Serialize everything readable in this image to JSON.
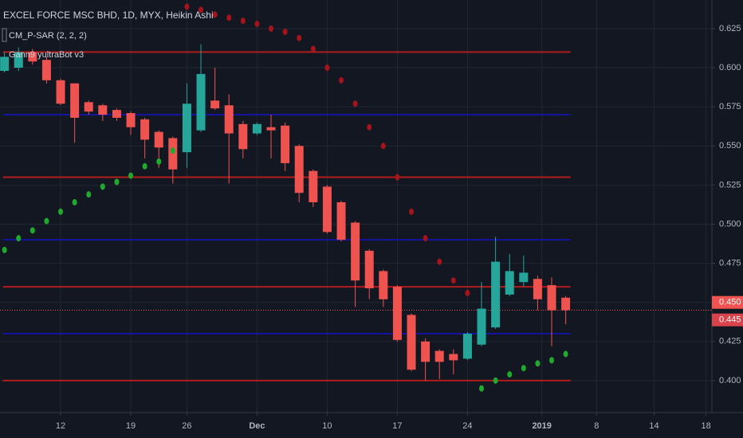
{
  "chart_data": {
    "type": "candlestick",
    "title": "EXCEL FORCE MSC BHD, 1D, MYX, Heikin Ashi",
    "indicators": [
      "CM_P-SAR (2, 2, 2)",
      "Gann9 yultraBot v3"
    ],
    "x": [
      0,
      1,
      2,
      3,
      4,
      5,
      6,
      7,
      8,
      9,
      10,
      11,
      12,
      13,
      14,
      15,
      16,
      17,
      18,
      19,
      20,
      21,
      22,
      23,
      24,
      25,
      26,
      27,
      28,
      29,
      30,
      31,
      32,
      33,
      34,
      35,
      36,
      37,
      38,
      39,
      40
    ],
    "open": [
      0.598,
      0.6,
      0.61,
      0.605,
      0.592,
      0.59,
      0.578,
      0.576,
      0.573,
      0.571,
      0.567,
      0.559,
      0.555,
      0.546,
      0.56,
      0.579,
      0.576,
      0.564,
      0.558,
      0.562,
      0.563,
      0.55,
      0.534,
      0.524,
      0.514,
      0.501,
      0.483,
      0.47,
      0.46,
      0.442,
      0.425,
      0.419,
      0.417,
      0.414,
      0.423,
      0.434,
      0.455,
      0.463,
      0.465,
      0.461,
      0.453
    ],
    "high": [
      0.61,
      0.613,
      0.612,
      0.607,
      0.593,
      0.59,
      0.579,
      0.577,
      0.574,
      0.572,
      0.568,
      0.56,
      0.556,
      0.59,
      0.615,
      0.6,
      0.583,
      0.566,
      0.565,
      0.57,
      0.565,
      0.551,
      0.535,
      0.525,
      0.515,
      0.502,
      0.484,
      0.471,
      0.461,
      0.443,
      0.427,
      0.42,
      0.42,
      0.431,
      0.463,
      0.492,
      0.481,
      0.48,
      0.467,
      0.466,
      0.454
    ],
    "low": [
      0.597,
      0.598,
      0.602,
      0.59,
      0.576,
      0.552,
      0.57,
      0.566,
      0.566,
      0.557,
      0.542,
      0.536,
      0.526,
      0.536,
      0.559,
      0.573,
      0.526,
      0.542,
      0.557,
      0.542,
      0.534,
      0.514,
      0.511,
      0.494,
      0.489,
      0.447,
      0.452,
      0.447,
      0.425,
      0.406,
      0.4,
      0.401,
      0.404,
      0.413,
      0.422,
      0.433,
      0.454,
      0.46,
      0.445,
      0.422,
      0.436
    ],
    "close": [
      0.607,
      0.61,
      0.604,
      0.592,
      0.577,
      0.568,
      0.572,
      0.57,
      0.568,
      0.562,
      0.554,
      0.549,
      0.535,
      0.577,
      0.596,
      0.574,
      0.558,
      0.548,
      0.564,
      0.56,
      0.539,
      0.52,
      0.514,
      0.495,
      0.49,
      0.464,
      0.459,
      0.452,
      0.426,
      0.407,
      0.412,
      0.412,
      0.413,
      0.43,
      0.446,
      0.476,
      0.47,
      0.469,
      0.452,
      0.445,
      0.445
    ],
    "up_color": "#26a69a",
    "down_color": "#ef5350",
    "psar": [
      0.4835,
      0.491,
      0.496,
      0.502,
      0.508,
      0.514,
      0.519,
      0.524,
      0.527,
      0.531,
      0.537,
      0.54,
      0.547,
      0.639,
      0.637,
      0.634,
      0.632,
      0.63,
      0.628,
      0.625,
      0.623,
      0.619,
      0.612,
      0.6,
      0.592,
      0.577,
      0.562,
      0.55,
      0.53,
      0.508,
      0.491,
      0.476,
      0.464,
      0.456,
      0.395,
      0.4,
      0.404,
      0.408,
      0.411,
      0.413,
      0.417
    ],
    "psar_colors": [
      "#1faa2e",
      "#1faa2e",
      "#1faa2e",
      "#1faa2e",
      "#1faa2e",
      "#1faa2e",
      "#1faa2e",
      "#1faa2e",
      "#1faa2e",
      "#1faa2e",
      "#1faa2e",
      "#1faa2e",
      "#1faa2e",
      "#a3141b",
      "#a3141b",
      "#a3141b",
      "#a3141b",
      "#a3141b",
      "#a3141b",
      "#a3141b",
      "#a3141b",
      "#a3141b",
      "#a3141b",
      "#a3141b",
      "#a3141b",
      "#a3141b",
      "#a3141b",
      "#a3141b",
      "#a3141b",
      "#a3141b",
      "#a3141b",
      "#a3141b",
      "#a3141b",
      "#a3141b",
      "#1faa2e",
      "#1faa2e",
      "#1faa2e",
      "#1faa2e",
      "#1faa2e",
      "#1faa2e",
      "#1faa2e"
    ],
    "levels": [
      {
        "value": 0.61,
        "color": "#b01c1c"
      },
      {
        "value": 0.57,
        "color": "#1414a0"
      },
      {
        "value": 0.53,
        "color": "#b01c1c"
      },
      {
        "value": 0.49,
        "color": "#1414a0"
      },
      {
        "value": 0.46,
        "color": "#b01c1c"
      },
      {
        "value": 0.43,
        "color": "#1414a0"
      },
      {
        "value": 0.4,
        "color": "#b01c1c"
      }
    ],
    "last_price": 0.445,
    "price_labels": [
      {
        "value": 0.45,
        "label": "0.450",
        "color": "#f05350"
      },
      {
        "value": 0.445,
        "label": "0.445",
        "color": "#d8434c"
      }
    ],
    "xlim": [
      -0.32,
      50.42
    ],
    "ylim": [
      0.3796,
      0.6433
    ],
    "xticks": [
      {
        "value": 4,
        "label": "12"
      },
      {
        "value": 9,
        "label": "19"
      },
      {
        "value": 13,
        "label": "26"
      },
      {
        "value": 18,
        "label": "Dec"
      },
      {
        "value": 23,
        "label": "10"
      },
      {
        "value": 28,
        "label": "17"
      },
      {
        "value": 33,
        "label": "24"
      },
      {
        "value": 38.3,
        "label": "2019"
      },
      {
        "value": 42.2,
        "label": "8"
      },
      {
        "value": 46.3,
        "label": "14"
      },
      {
        "value": 50,
        "label": "18"
      }
    ],
    "yticks": [
      {
        "value": 0.4,
        "label": "0.400"
      },
      0.425,
      {
        "value": 0.45,
        "label": "0.450"
      },
      0.475,
      {
        "value": 0.5,
        "label": "0.500"
      },
      0.525,
      {
        "value": 0.55,
        "label": "0.550"
      },
      0.575,
      {
        "value": 0.6,
        "label": "0.600"
      },
      0.625
    ],
    "grid": true
  }
}
